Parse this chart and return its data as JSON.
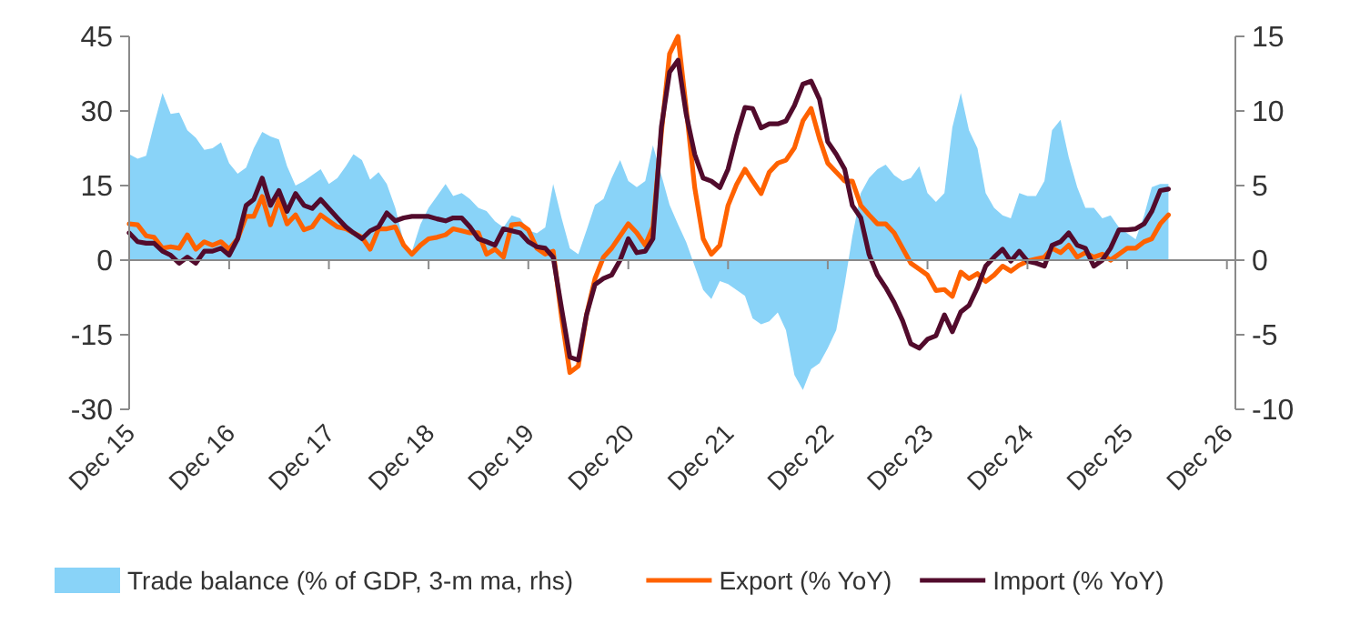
{
  "chart_data": {
    "type": "line",
    "x": [
      "2015-12",
      "2016-01",
      "2016-02",
      "2016-03",
      "2016-04",
      "2016-05",
      "2016-06",
      "2016-07",
      "2016-08",
      "2016-09",
      "2016-10",
      "2016-11",
      "2016-12",
      "2017-01",
      "2017-02",
      "2017-03",
      "2017-04",
      "2017-05",
      "2017-06",
      "2017-07",
      "2017-08",
      "2017-09",
      "2017-10",
      "2017-11",
      "2017-12",
      "2018-01",
      "2018-02",
      "2018-03",
      "2018-04",
      "2018-05",
      "2018-06",
      "2018-07",
      "2018-08",
      "2018-09",
      "2018-10",
      "2018-11",
      "2018-12",
      "2019-01",
      "2019-02",
      "2019-03",
      "2019-04",
      "2019-05",
      "2019-06",
      "2019-07",
      "2019-08",
      "2019-09",
      "2019-10",
      "2019-11",
      "2019-12",
      "2020-01",
      "2020-02",
      "2020-03",
      "2020-04",
      "2020-05",
      "2020-06",
      "2020-07",
      "2020-08",
      "2020-09",
      "2020-10",
      "2020-11",
      "2020-12",
      "2021-01",
      "2021-02",
      "2021-03",
      "2021-04",
      "2021-05",
      "2021-06",
      "2021-07",
      "2021-08",
      "2021-09",
      "2021-10",
      "2021-11",
      "2021-12",
      "2022-01",
      "2022-02",
      "2022-03",
      "2022-04",
      "2022-05",
      "2022-06",
      "2022-07",
      "2022-08",
      "2022-09",
      "2022-10",
      "2022-11",
      "2022-12",
      "2023-01",
      "2023-02",
      "2023-03",
      "2023-04",
      "2023-05",
      "2023-06",
      "2023-07",
      "2023-08",
      "2023-09",
      "2023-10",
      "2023-11",
      "2023-12",
      "2024-01",
      "2024-02",
      "2024-03",
      "2024-04",
      "2024-05",
      "2024-06",
      "2024-07",
      "2024-08",
      "2024-09",
      "2024-10",
      "2024-11",
      "2024-12",
      "2025-01",
      "2025-02",
      "2025-03",
      "2025-04",
      "2025-05",
      "2025-06",
      "2025-07",
      "2025-08",
      "2025-09",
      "2025-10",
      "2025-11",
      "2025-12",
      "2026-01",
      "2026-02",
      "2026-03",
      "2026-04",
      "2026-05"
    ],
    "series": [
      {
        "name": "Trade balance (% of GDP, 3-m ma, rhs)",
        "type": "area",
        "axis": "y2",
        "color": "#89d3f8",
        "values": [
          7.1,
          6.8,
          7.0,
          9.1,
          11.2,
          9.8,
          9.9,
          8.7,
          8.2,
          7.4,
          7.5,
          7.9,
          6.5,
          5.8,
          6.2,
          7.5,
          8.6,
          8.3,
          8.1,
          6.3,
          5.0,
          5.3,
          5.7,
          6.1,
          5.1,
          5.5,
          6.3,
          7.1,
          6.7,
          5.4,
          5.9,
          5.1,
          3.5,
          1.2,
          0.6,
          2.4,
          3.5,
          4.3,
          5.1,
          4.3,
          4.5,
          4.1,
          3.5,
          3.3,
          2.6,
          2.2,
          3.0,
          2.8,
          2.0,
          1.8,
          2.2,
          5.1,
          2.8,
          0.8,
          0.4,
          2.0,
          3.7,
          4.1,
          5.5,
          6.7,
          5.3,
          4.9,
          5.3,
          7.7,
          5.7,
          3.7,
          2.4,
          1.2,
          -0.4,
          -2.0,
          -2.6,
          -1.4,
          -1.6,
          -2.0,
          -2.4,
          -3.9,
          -4.3,
          -4.1,
          -3.5,
          -4.7,
          -7.7,
          -8.7,
          -7.3,
          -6.9,
          -5.9,
          -4.7,
          -1.6,
          1.6,
          4.5,
          5.5,
          6.1,
          6.4,
          5.7,
          5.3,
          5.5,
          6.3,
          4.5,
          3.9,
          4.5,
          8.9,
          11.2,
          8.7,
          7.5,
          4.5,
          3.5,
          3.0,
          2.8,
          4.5,
          4.3,
          4.3,
          5.3,
          8.7,
          9.4,
          6.9,
          4.9,
          3.5,
          3.5,
          2.8,
          3.0,
          2.2,
          1.8,
          1.4,
          3.0,
          4.9,
          5.1,
          5.1
        ]
      },
      {
        "name": "Export (% YoY)",
        "color": "#ff6200",
        "values": [
          7.3,
          7.1,
          4.9,
          4.6,
          2.4,
          2.7,
          2.4,
          5.1,
          2.2,
          3.7,
          3.0,
          3.7,
          2.2,
          4.3,
          8.8,
          8.8,
          12.8,
          7.1,
          12.2,
          7.3,
          9.1,
          6.1,
          6.7,
          9.1,
          7.9,
          6.7,
          6.3,
          5.5,
          4.6,
          2.2,
          6.3,
          6.3,
          6.7,
          3.0,
          1.2,
          3.0,
          4.3,
          4.6,
          5.1,
          6.3,
          5.9,
          5.5,
          5.5,
          1.2,
          2.2,
          0.6,
          7.1,
          7.3,
          6.1,
          2.4,
          1.2,
          1.8,
          -11.6,
          -22.6,
          -21.3,
          -11.0,
          -3.7,
          0.6,
          2.4,
          4.9,
          7.3,
          5.5,
          3.0,
          6.7,
          25.6,
          41.5,
          45,
          30.5,
          14.6,
          4.3,
          1.2,
          3.0,
          11.0,
          15.2,
          18.3,
          15.9,
          13.4,
          17.7,
          19.5,
          20.1,
          22.6,
          28.0,
          30.5,
          24.4,
          19.5,
          17.7,
          15.9,
          15.9,
          11.0,
          9.1,
          7.3,
          7.3,
          5.5,
          2.4,
          -0.6,
          -1.8,
          -3.0,
          -6.1,
          -5.9,
          -7.3,
          -2.4,
          -3.7,
          -2.7,
          -4.3,
          -3.0,
          -1.2,
          -2.2,
          -1.0,
          -0.2,
          0.2,
          0.6,
          2.4,
          1.5,
          3.0,
          0.6,
          1.5,
          0.6,
          1.2,
          0,
          1.2,
          2.4,
          2.4,
          3.7,
          4.3,
          7.3,
          9.1
        ]
      },
      {
        "name": "Import (% YoY)",
        "color": "#520b2c",
        "values": [
          5.5,
          3.7,
          3.4,
          3.4,
          1.8,
          1.0,
          -0.6,
          0.6,
          -0.6,
          1.8,
          1.8,
          2.4,
          1.0,
          4.3,
          11.0,
          12.2,
          16.5,
          11.0,
          14.0,
          9.8,
          13.4,
          11.0,
          10.4,
          12.2,
          10.4,
          8.5,
          6.7,
          5.5,
          4.3,
          5.9,
          6.7,
          9.5,
          7.9,
          8.5,
          8.8,
          8.8,
          8.8,
          8.3,
          7.9,
          8.5,
          8.5,
          6.7,
          4.3,
          3.7,
          3.0,
          6.3,
          5.9,
          5.5,
          3.7,
          2.7,
          2.4,
          0.6,
          -9.8,
          -19.5,
          -20.1,
          -11.0,
          -4.9,
          -3.7,
          -3.0,
          0,
          4.3,
          1.5,
          1.8,
          4.3,
          26.8,
          37.8,
          40.2,
          29.3,
          21.3,
          16.5,
          15.9,
          14.6,
          18.3,
          25.0,
          30.7,
          30.5,
          26.6,
          27.4,
          27.4,
          28.0,
          31.1,
          35.4,
          36.0,
          32.3,
          23.8,
          21.3,
          18.3,
          11.0,
          8.5,
          1.2,
          -3.0,
          -5.5,
          -8.5,
          -12.2,
          -16.8,
          -17.7,
          -15.9,
          -15.2,
          -11.0,
          -14.4,
          -10.4,
          -9.1,
          -5.5,
          -1.2,
          0.6,
          2.2,
          -0.2,
          1.8,
          -0.2,
          -0.6,
          -1.2,
          3.0,
          3.7,
          5.5,
          3.0,
          2.4,
          -1.2,
          0,
          2.4,
          6.1,
          6.1,
          6.3,
          7.3,
          9.8,
          14.0,
          14.3
        ]
      }
    ],
    "xlim": [
      "2015-12",
      "2027-01"
    ],
    "xticks": [
      {
        "value": "2015-12",
        "label": "Dec 15"
      },
      {
        "value": "2016-12",
        "label": "Dec 16"
      },
      {
        "value": "2017-12",
        "label": "Dec 17"
      },
      {
        "value": "2018-12",
        "label": "Dec 18"
      },
      {
        "value": "2019-12",
        "label": "Dec 19"
      },
      {
        "value": "2020-12",
        "label": "Dec 20"
      },
      {
        "value": "2021-12",
        "label": "Dec 21"
      },
      {
        "value": "2022-12",
        "label": "Dec 22"
      },
      {
        "value": "2023-12",
        "label": "Dec 23"
      },
      {
        "value": "2024-12",
        "label": "Dec 24"
      },
      {
        "value": "2025-12",
        "label": "Dec 25"
      },
      {
        "value": "2026-12",
        "label": "Dec 26"
      }
    ],
    "ylim": [
      -30,
      45
    ],
    "yticks": [
      -30,
      -15,
      0,
      15,
      30,
      45
    ],
    "y2lim": [
      -10,
      15
    ],
    "y2ticks": [
      -10,
      -5,
      0,
      5,
      10,
      15
    ],
    "legend": "bottom",
    "marker": "none",
    "line_style": "solid"
  }
}
